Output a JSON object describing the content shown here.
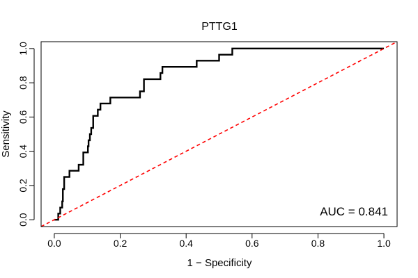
{
  "chart_data": {
    "type": "line",
    "title": "PTTG1",
    "xlabel": "1 − Specificity",
    "ylabel": "Sensitivity",
    "xlim": [
      -0.04,
      1.04
    ],
    "ylim": [
      -0.04,
      1.04
    ],
    "xticks": [
      0.0,
      0.2,
      0.4,
      0.6,
      0.8,
      1.0
    ],
    "xtick_labels": [
      "0.0",
      "0.2",
      "0.4",
      "0.6",
      "0.8",
      "1.0"
    ],
    "yticks": [
      0.0,
      0.2,
      0.4,
      0.6,
      0.8,
      1.0
    ],
    "ytick_labels": [
      "0.0",
      "0.2",
      "0.4",
      "0.6",
      "0.8",
      "1.0"
    ],
    "grid": false,
    "annotation": "AUC = 0.841",
    "series": [
      {
        "style": "solid",
        "color": "#000000",
        "points": [
          [
            0.0,
            0.0
          ],
          [
            0.012,
            0.0
          ],
          [
            0.012,
            0.036
          ],
          [
            0.018,
            0.036
          ],
          [
            0.018,
            0.071
          ],
          [
            0.024,
            0.071
          ],
          [
            0.024,
            0.107
          ],
          [
            0.026,
            0.107
          ],
          [
            0.026,
            0.179
          ],
          [
            0.03,
            0.179
          ],
          [
            0.03,
            0.25
          ],
          [
            0.046,
            0.25
          ],
          [
            0.046,
            0.286
          ],
          [
            0.074,
            0.286
          ],
          [
            0.074,
            0.321
          ],
          [
            0.088,
            0.321
          ],
          [
            0.088,
            0.393
          ],
          [
            0.102,
            0.393
          ],
          [
            0.102,
            0.429
          ],
          [
            0.104,
            0.429
          ],
          [
            0.104,
            0.464
          ],
          [
            0.108,
            0.464
          ],
          [
            0.108,
            0.5
          ],
          [
            0.112,
            0.5
          ],
          [
            0.112,
            0.536
          ],
          [
            0.118,
            0.536
          ],
          [
            0.118,
            0.607
          ],
          [
            0.132,
            0.607
          ],
          [
            0.132,
            0.643
          ],
          [
            0.14,
            0.643
          ],
          [
            0.14,
            0.679
          ],
          [
            0.17,
            0.679
          ],
          [
            0.17,
            0.714
          ],
          [
            0.26,
            0.714
          ],
          [
            0.26,
            0.75
          ],
          [
            0.272,
            0.75
          ],
          [
            0.272,
            0.821
          ],
          [
            0.322,
            0.821
          ],
          [
            0.322,
            0.857
          ],
          [
            0.328,
            0.857
          ],
          [
            0.328,
            0.893
          ],
          [
            0.432,
            0.893
          ],
          [
            0.432,
            0.929
          ],
          [
            0.5,
            0.929
          ],
          [
            0.5,
            0.964
          ],
          [
            0.54,
            0.964
          ],
          [
            0.54,
            1.0
          ],
          [
            1.0,
            1.0
          ]
        ]
      },
      {
        "style": "dashed",
        "color": "#ff0000",
        "points": [
          [
            -0.04,
            -0.04
          ],
          [
            1.04,
            1.04
          ]
        ]
      }
    ]
  }
}
